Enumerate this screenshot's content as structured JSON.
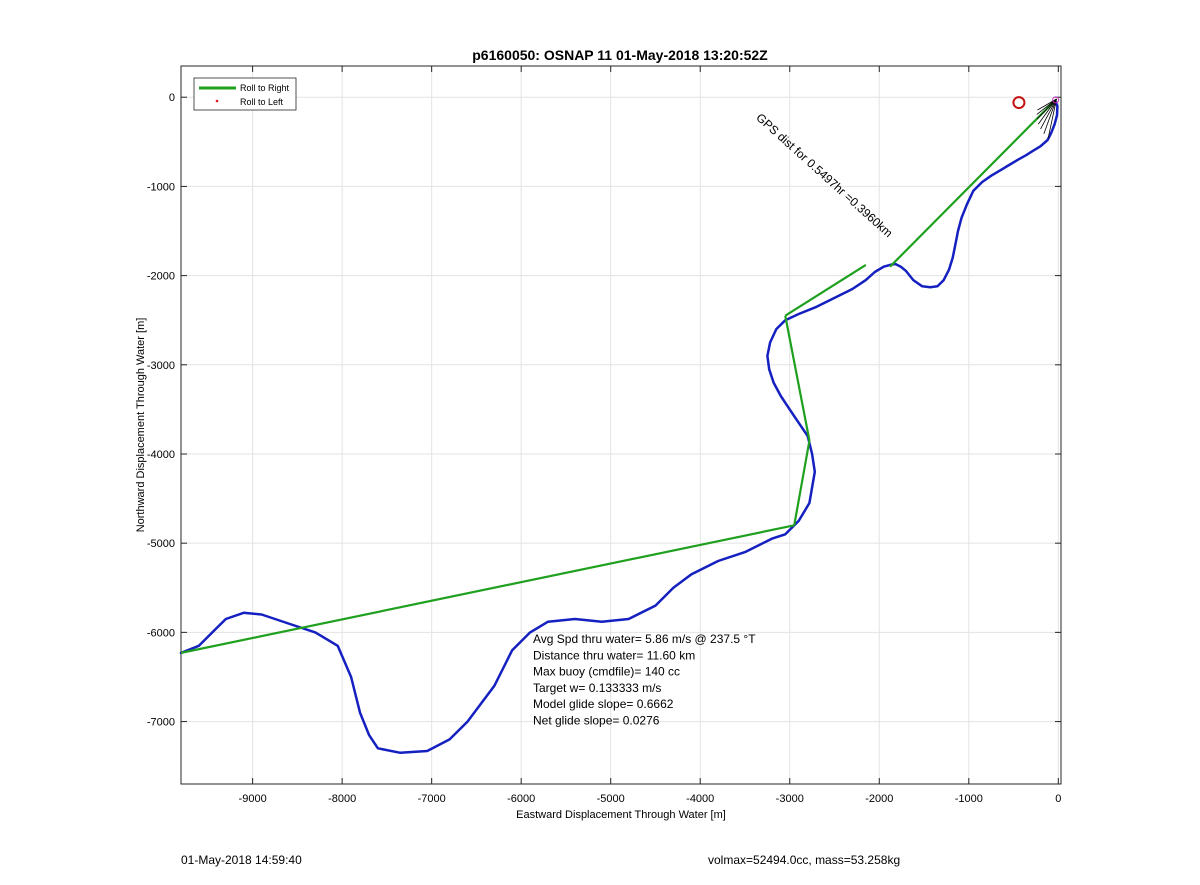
{
  "chart_data": {
    "type": "line",
    "title": "p6160050: OSNAP 11 01-May-2018 13:20:52Z",
    "xlabel": "Eastward Displacement Through Water [m]",
    "ylabel": "Northward Displacement Through Water [m]",
    "xlim": [
      -9800,
      30
    ],
    "ylim": [
      -7700,
      350
    ],
    "xticks": [
      -9000,
      -8000,
      -7000,
      -6000,
      -5000,
      -4000,
      -3000,
      -2000,
      -1000,
      0
    ],
    "yticks": [
      -7000,
      -6000,
      -5000,
      -4000,
      -3000,
      -2000,
      -1000,
      0
    ],
    "grid": true,
    "legend": {
      "placement": "top-left",
      "entries": [
        {
          "label": "Roll to Right",
          "color": "#1fa01f",
          "marker": "line"
        },
        {
          "label": "Roll to Left",
          "color": "#e8141c",
          "marker": "dot"
        }
      ]
    },
    "series": [
      {
        "color": "#1520c0",
        "x": [
          -30,
          -10,
          -15,
          -40,
          -80,
          -120,
          -200,
          -280,
          -360,
          -450,
          -550,
          -650,
          -750,
          -850,
          -950,
          -1020,
          -1080,
          -1120,
          -1150,
          -1180,
          -1220,
          -1280,
          -1350,
          -1430,
          -1520,
          -1620,
          -1700,
          -1760,
          -1820,
          -1880,
          -1950,
          -2050,
          -2150,
          -2300,
          -2500,
          -2700,
          -2900,
          -3050,
          -3150,
          -3220,
          -3250,
          -3230,
          -3180,
          -3100,
          -3000,
          -2900,
          -2800,
          -2750,
          -2720,
          -2780,
          -2900,
          -3050,
          -3200,
          -3500,
          -3800,
          -4100,
          -4300,
          -4500,
          -4800,
          -5100,
          -5400,
          -5700,
          -5900,
          -6100,
          -6200,
          -6300,
          -6450,
          -6600,
          -6800,
          -7050,
          -7350,
          -7600,
          -7700,
          -7800,
          -7900,
          -8050,
          -8300,
          -8600,
          -8900,
          -9100,
          -9300,
          -9450,
          -9600,
          -9800
        ],
        "y": [
          -50,
          -100,
          -200,
          -300,
          -400,
          -480,
          -550,
          -600,
          -650,
          -700,
          -760,
          -820,
          -880,
          -950,
          -1050,
          -1200,
          -1350,
          -1500,
          -1650,
          -1800,
          -1930,
          -2050,
          -2120,
          -2130,
          -2120,
          -2050,
          -1950,
          -1900,
          -1870,
          -1880,
          -1900,
          -1960,
          -2050,
          -2150,
          -2250,
          -2350,
          -2430,
          -2500,
          -2600,
          -2750,
          -2900,
          -3050,
          -3200,
          -3350,
          -3500,
          -3650,
          -3800,
          -4000,
          -4200,
          -4550,
          -4750,
          -4900,
          -4950,
          -5100,
          -5200,
          -5350,
          -5500,
          -5700,
          -5850,
          -5880,
          -5850,
          -5880,
          -6000,
          -6200,
          -6400,
          -6600,
          -6800,
          -7000,
          -7200,
          -7330,
          -7350,
          -7300,
          -7150,
          -6900,
          -6500,
          -6150,
          -6000,
          -5900,
          -5800,
          -5780,
          -5850,
          -6000,
          -6150,
          -6230
        ],
        "role": "glider track"
      },
      {
        "color": "#1fa01f",
        "segments": [
          {
            "x": [
              -9800,
              -2950
            ],
            "y": [
              -6230,
              -4800
            ]
          },
          {
            "x": [
              -2950,
              -2780
            ],
            "y": [
              -4800,
              -3850
            ]
          },
          {
            "x": [
              -2780,
              -3050
            ],
            "y": [
              -3850,
              -2450
            ]
          },
          {
            "x": [
              -3050,
              -2150
            ],
            "y": [
              -2450,
              -1880
            ]
          },
          {
            "x": [
              -1880,
              -50
            ],
            "y": [
              -1900,
              -50
            ]
          }
        ],
        "role": "Roll to Right"
      }
    ],
    "annotations": [
      {
        "text": "Avg Spd thru water=  5.86 m/s @ 237.5 °T"
      },
      {
        "text": "Distance thru water= 11.60 km"
      },
      {
        "text": "Max buoy (cmdfile)= 140 cc"
      },
      {
        "text": "Target w= 0.133333 m/s"
      },
      {
        "text": "Model glide slope= 0.6662"
      },
      {
        "text": "Net glide slope= 0.0276"
      },
      {
        "text": "GPS dist for 0.5497hr =0.3960km"
      }
    ],
    "gps_marker": {
      "x": -440,
      "y": -60,
      "color": "#c41010"
    }
  },
  "footer": {
    "left": "01-May-2018 14:59:40",
    "right": "volmax=52494.0cc, mass=53.258kg"
  }
}
